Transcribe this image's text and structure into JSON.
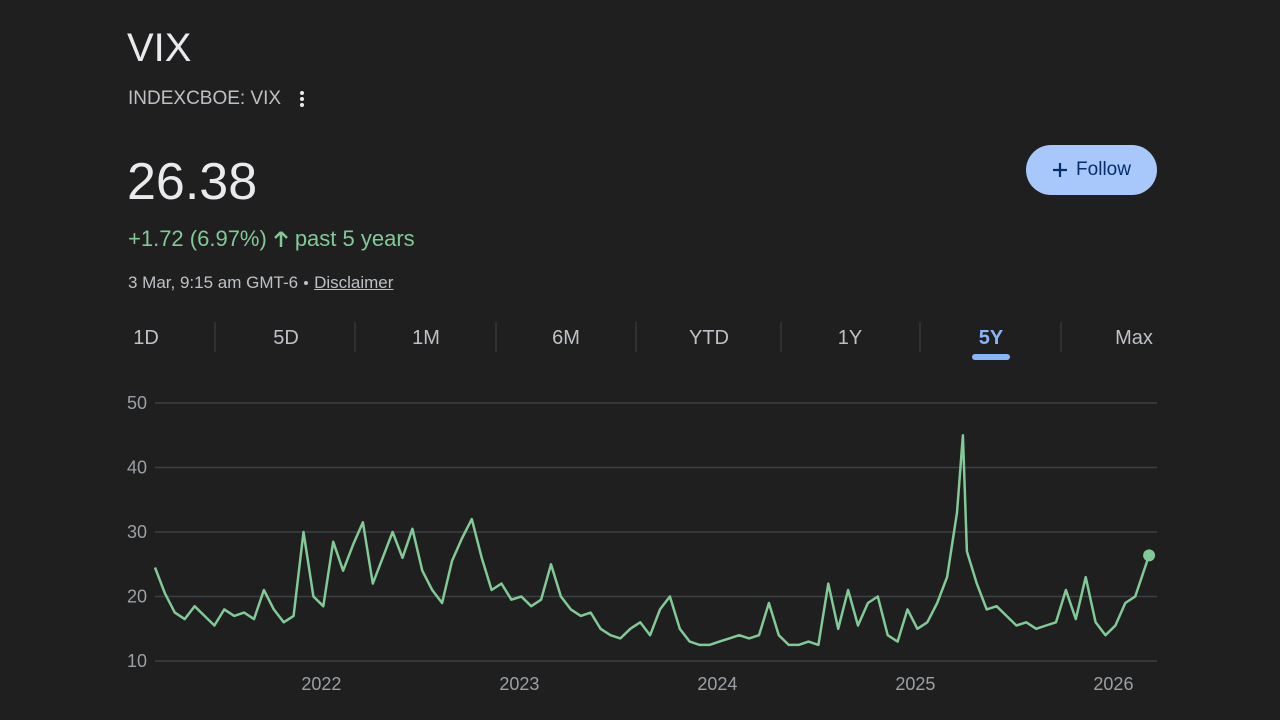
{
  "header": {
    "title": "VIX",
    "exchange": "INDEXCBOE: VIX"
  },
  "quote": {
    "price": "26.38",
    "change": "+1.72 (6.97%)",
    "period": "past 5 years",
    "timestamp": "3 Mar, 9:15 am GMT-6",
    "disclaimer": "Disclaimer"
  },
  "follow_button": "Follow",
  "ranges": {
    "items": [
      "1D",
      "5D",
      "1M",
      "6M",
      "YTD",
      "1Y",
      "5Y",
      "Max"
    ],
    "active": "5Y"
  },
  "chart_data": {
    "type": "line",
    "x": [
      2021.16,
      2021.21,
      2021.26,
      2021.31,
      2021.36,
      2021.41,
      2021.46,
      2021.51,
      2021.56,
      2021.61,
      2021.66,
      2021.71,
      2021.76,
      2021.81,
      2021.86,
      2021.91,
      2021.96,
      2022.01,
      2022.06,
      2022.11,
      2022.16,
      2022.21,
      2022.26,
      2022.31,
      2022.36,
      2022.41,
      2022.46,
      2022.51,
      2022.56,
      2022.61,
      2022.66,
      2022.71,
      2022.76,
      2022.81,
      2022.86,
      2022.91,
      2022.96,
      2023.01,
      2023.06,
      2023.11,
      2023.16,
      2023.21,
      2023.26,
      2023.31,
      2023.36,
      2023.41,
      2023.46,
      2023.51,
      2023.56,
      2023.61,
      2023.66,
      2023.71,
      2023.76,
      2023.81,
      2023.86,
      2023.91,
      2023.96,
      2024.01,
      2024.06,
      2024.11,
      2024.16,
      2024.21,
      2024.26,
      2024.31,
      2024.36,
      2024.41,
      2024.46,
      2024.51,
      2024.56,
      2024.61,
      2024.66,
      2024.71,
      2024.76,
      2024.81,
      2024.86,
      2024.91,
      2024.96,
      2025.01,
      2025.06,
      2025.11,
      2025.16,
      2025.21,
      2025.24,
      2025.26,
      2025.31,
      2025.36,
      2025.41,
      2025.46,
      2025.51,
      2025.56,
      2025.61,
      2025.66,
      2025.71,
      2025.76,
      2025.81,
      2025.86,
      2025.91,
      2025.96,
      2026.01,
      2026.06,
      2026.11,
      2026.18
    ],
    "series": [
      {
        "color": "#81c995",
        "values": [
          24.5,
          20.5,
          17.5,
          16.5,
          18.5,
          17,
          15.5,
          18,
          17,
          17.5,
          16.5,
          21,
          18,
          16,
          17,
          30,
          20,
          18.5,
          28.5,
          24,
          28,
          31.5,
          22,
          26,
          30,
          26,
          30.5,
          24,
          21,
          19,
          25.5,
          29,
          32,
          26,
          21,
          22,
          19.5,
          20,
          18.5,
          19.5,
          25,
          20,
          18,
          17,
          17.5,
          15,
          14,
          13.5,
          15,
          16,
          14,
          18,
          20,
          15,
          13,
          12.5,
          12.5,
          13,
          13.5,
          14,
          13.5,
          14,
          19,
          14,
          12.5,
          12.5,
          13,
          12.5,
          22,
          15,
          21,
          15.5,
          19,
          20,
          14,
          13,
          18,
          15,
          16,
          19,
          23,
          33,
          45,
          27,
          22,
          18,
          18.5,
          17,
          15.5,
          16,
          15,
          15.5,
          16,
          21,
          16.5,
          23,
          16,
          14,
          15.5,
          19,
          20,
          26.38
        ]
      }
    ],
    "xlim": [
      2021.16,
      2026.22
    ],
    "xticks": [
      2022,
      2023,
      2024,
      2025,
      2026
    ],
    "ylim": [
      10,
      50
    ],
    "yticks": [
      10,
      20,
      30,
      40,
      50
    ],
    "grid": true
  }
}
